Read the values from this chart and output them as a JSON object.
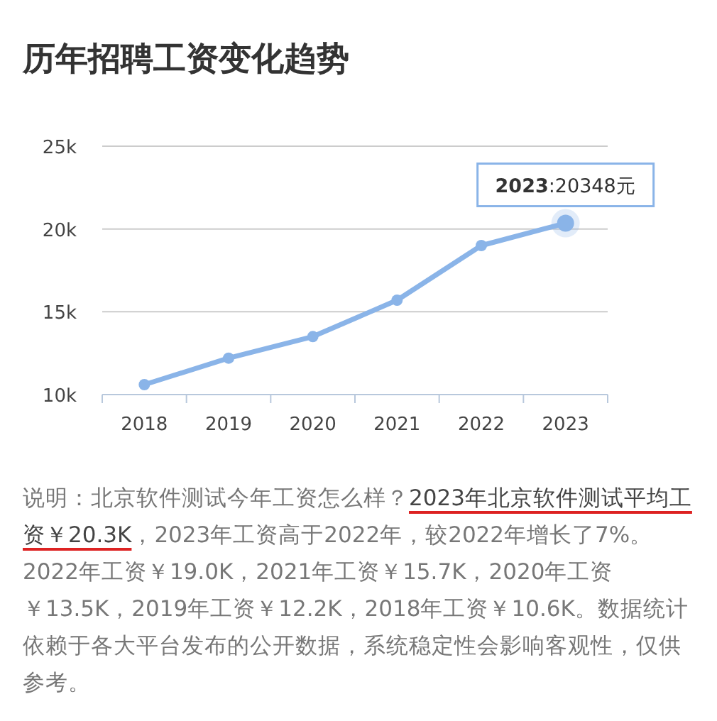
{
  "chart_data": {
    "type": "line",
    "title": "历年招聘工资变化趋势",
    "categories": [
      "2018",
      "2019",
      "2020",
      "2021",
      "2022",
      "2023"
    ],
    "series": [
      {
        "color": "#8ab4e8",
        "values": [
          10600,
          12200,
          13500,
          15700,
          19000,
          20348
        ]
      }
    ],
    "ylim": [
      10000,
      25000
    ],
    "yticks": [
      {
        "value": 10000,
        "label": "10k"
      },
      {
        "value": 15000,
        "label": "15k"
      },
      {
        "value": 20000,
        "label": "20k"
      },
      {
        "value": 25000,
        "label": "25k"
      }
    ],
    "grid": "y",
    "marker": "circle",
    "annotations": [
      {
        "text": "2023:20348元",
        "x": "2023",
        "y": 20348
      },
      "说明：北京软件测试今年工资怎么样？",
      "2023年北京软件测试平均工资￥20.3K",
      "，2023年工资高于2022年，较2022年增长了7%。2022年工资￥19.0K，2021年工资￥15.7K，2020年工资￥13.5K，2019年工资￥12.2K，2018年工资￥10.6K。数据统计依赖于各大平台发布的公开数据，系统稳定性会影响客观性，仅供参考。"
    ]
  }
}
